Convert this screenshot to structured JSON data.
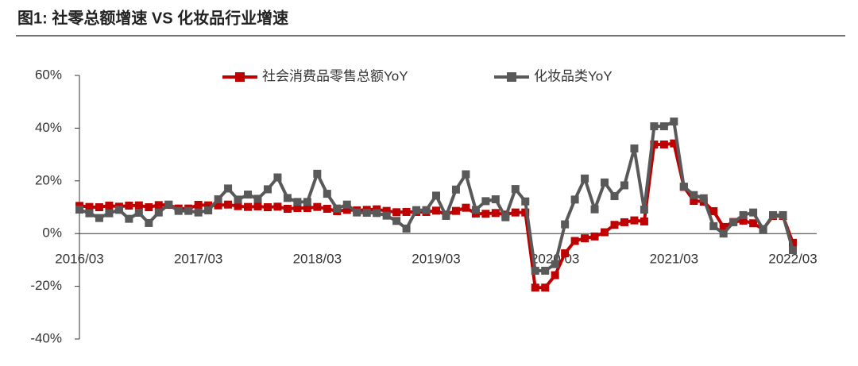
{
  "chart_data": {
    "type": "line",
    "title": "图1: 社零总额增速 VS 化妆品行业增速",
    "categories": [
      "2016/03",
      null,
      null,
      null,
      null,
      null,
      null,
      null,
      null,
      null,
      null,
      null,
      "2017/03",
      null,
      null,
      null,
      null,
      null,
      null,
      null,
      null,
      null,
      null,
      null,
      "2018/03",
      null,
      null,
      null,
      null,
      null,
      null,
      null,
      null,
      null,
      null,
      null,
      "2019/03",
      null,
      null,
      null,
      null,
      null,
      null,
      null,
      null,
      null,
      null,
      null,
      "2020/03",
      null,
      null,
      null,
      null,
      null,
      null,
      null,
      null,
      null,
      null,
      null,
      "2021/03",
      null,
      null,
      null,
      null,
      null,
      null,
      null,
      null,
      null,
      null,
      null,
      "2022/03"
    ],
    "series": [
      {
        "name": "社会消费品零售总额YoY",
        "color": "#c00000",
        "values": [
          10.5,
          10.1,
          10.0,
          10.6,
          10.2,
          10.6,
          10.7,
          10.0,
          10.8,
          10.9,
          9.5,
          9.5,
          10.9,
          10.7,
          10.7,
          11.0,
          10.4,
          10.1,
          10.3,
          10.0,
          10.2,
          9.4,
          9.7,
          9.7,
          10.1,
          9.4,
          8.5,
          9.0,
          8.8,
          9.0,
          9.2,
          8.6,
          8.1,
          8.2,
          8.2,
          8.2,
          8.7,
          7.2,
          8.6,
          9.8,
          7.6,
          7.5,
          7.8,
          7.2,
          8.0,
          8.0,
          -20.5,
          -20.5,
          -15.8,
          -7.5,
          -2.8,
          -1.8,
          -1.1,
          0.5,
          3.3,
          4.3,
          5.0,
          4.6,
          33.8,
          33.8,
          34.2,
          17.7,
          12.4,
          12.1,
          8.5,
          2.5,
          4.4,
          4.9,
          3.9,
          1.7,
          6.7,
          6.7,
          -3.5
        ]
      },
      {
        "name": "化妆品类YoY",
        "color": "#595959",
        "values": [
          9.1,
          7.7,
          5.9,
          7.7,
          9.0,
          5.6,
          7.9,
          4.0,
          8.0,
          11.0,
          8.6,
          8.6,
          8.0,
          8.8,
          13.0,
          17.1,
          12.9,
          14.8,
          13.2,
          16.8,
          21.3,
          13.5,
          12.0,
          12.0,
          22.7,
          15.1,
          9.5,
          11.0,
          8.0,
          7.9,
          7.8,
          6.8,
          4.8,
          1.9,
          8.9,
          8.9,
          14.4,
          6.7,
          16.7,
          22.5,
          9.0,
          12.3,
          13.0,
          6.2,
          16.9,
          12.2,
          -14.1,
          -14.1,
          -11.6,
          3.5,
          12.9,
          20.9,
          9.2,
          19.4,
          14.2,
          18.3,
          32.3,
          9.1,
          40.7,
          40.7,
          42.5,
          17.8,
          14.6,
          13.4,
          2.8,
          0.0,
          4.3,
          7.0,
          8.0,
          1.6,
          7.0,
          7.0,
          -6.3
        ]
      }
    ],
    "ylim": [
      -40,
      60
    ],
    "yticks": [
      {
        "value": -40,
        "label": "-40%"
      },
      {
        "value": -20,
        "label": "-20%"
      },
      {
        "value": 0,
        "label": "0%"
      },
      {
        "value": 20,
        "label": "20%"
      },
      {
        "value": 40,
        "label": "40%"
      },
      {
        "value": 60,
        "label": "60%"
      }
    ],
    "legend": "top"
  }
}
